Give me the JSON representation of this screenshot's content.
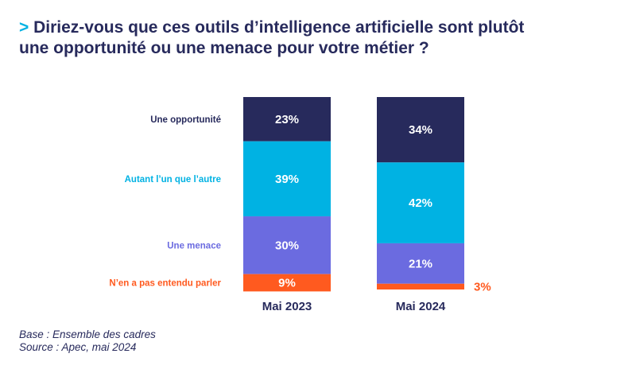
{
  "title": {
    "marker": ">",
    "line1": "Diriez-vous que ces outils d’intelligence artificielle sont plutôt",
    "line2": "une opportunité ou une menace pour votre métier ?"
  },
  "chart_data": {
    "type": "bar",
    "stacked": true,
    "categories": [
      "Mai 2023",
      "Mai 2024"
    ],
    "series": [
      {
        "name": "Une opportunité",
        "values": [
          23,
          34
        ],
        "labels": [
          "23%",
          "34%"
        ],
        "color": "#272a5c",
        "label_color": "#272a5c"
      },
      {
        "name": "Autant l’un que l’autre",
        "values": [
          39,
          42
        ],
        "labels": [
          "39%",
          "42%"
        ],
        "color": "#00b2e3",
        "label_color": "#00b2e3"
      },
      {
        "name": "Une menace",
        "values": [
          30,
          21
        ],
        "labels": [
          "30%",
          "21%"
        ],
        "color": "#6b6be0",
        "label_color": "#6b6be0"
      },
      {
        "name": "N’en a pas entendu parler",
        "values": [
          9,
          3
        ],
        "labels": [
          "9%",
          "3%"
        ],
        "color": "#ff5a1f",
        "label_color": "#ff5a1f"
      }
    ],
    "ylim": [
      0,
      100
    ]
  },
  "footer": {
    "base": "Base : Ensemble des cadres",
    "source": "Source : Apec, mai 2024"
  }
}
